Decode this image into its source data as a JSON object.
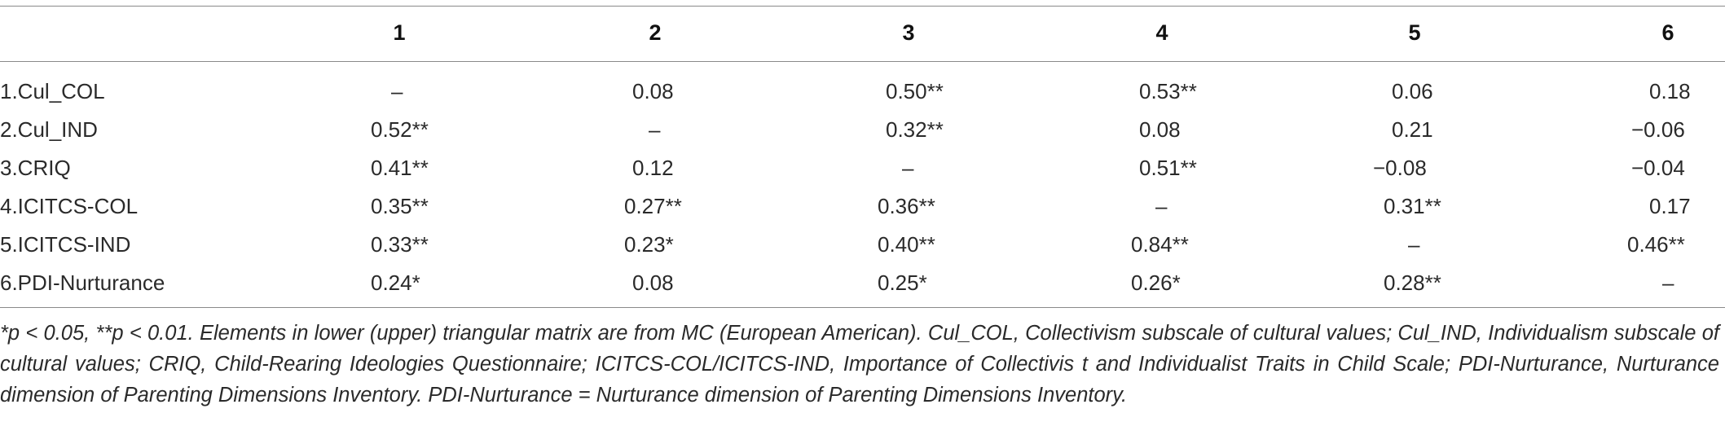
{
  "table": {
    "columns": [
      "1",
      "2",
      "3",
      "4",
      "5",
      "6"
    ],
    "rows": [
      {
        "label": "1.Cul_COL",
        "cells": [
          "–",
          "0.08",
          "0.50**",
          "0.53**",
          "0.06",
          "0.18"
        ]
      },
      {
        "label": "2.Cul_IND",
        "cells": [
          "0.52**",
          "–",
          "0.32**",
          "0.08",
          "0.21",
          "−0.06"
        ]
      },
      {
        "label": "3.CRIQ",
        "cells": [
          "0.41**",
          "0.12",
          "–",
          "0.51**",
          "−0.08",
          "−0.04"
        ]
      },
      {
        "label": "4.ICITCS-COL",
        "cells": [
          "0.35**",
          "0.27**",
          "0.36**",
          "–",
          "0.31**",
          "0.17"
        ]
      },
      {
        "label": "5.ICITCS-IND",
        "cells": [
          "0.33**",
          "0.23*",
          "0.40**",
          "0.84**",
          "–",
          "0.46**"
        ]
      },
      {
        "label": "6.PDI-Nurturance",
        "cells": [
          "0.24*",
          "0.08",
          "0.25*",
          "0.26*",
          "0.28**",
          "–"
        ]
      }
    ],
    "footnote": "*p < 0.05, **p < 0.01. Elements in lower (upper) triangular matrix are from MC (European American). Cul_COL, Collectivism subscale of cultural values; Cul_IND, Individualism subscale of cultural values; CRIQ, Child-Rearing Ideologies Questionnaire; ICITCS-COL/ICITCS-IND, Importance of Collectivis t and Individualist Traits in Child Scale; PDI-Nurturance, Nurturance dimension of Parenting Dimensions Inventory. PDI-Nurturance = Nurturance dimension of Parenting Dimensions Inventory."
  }
}
